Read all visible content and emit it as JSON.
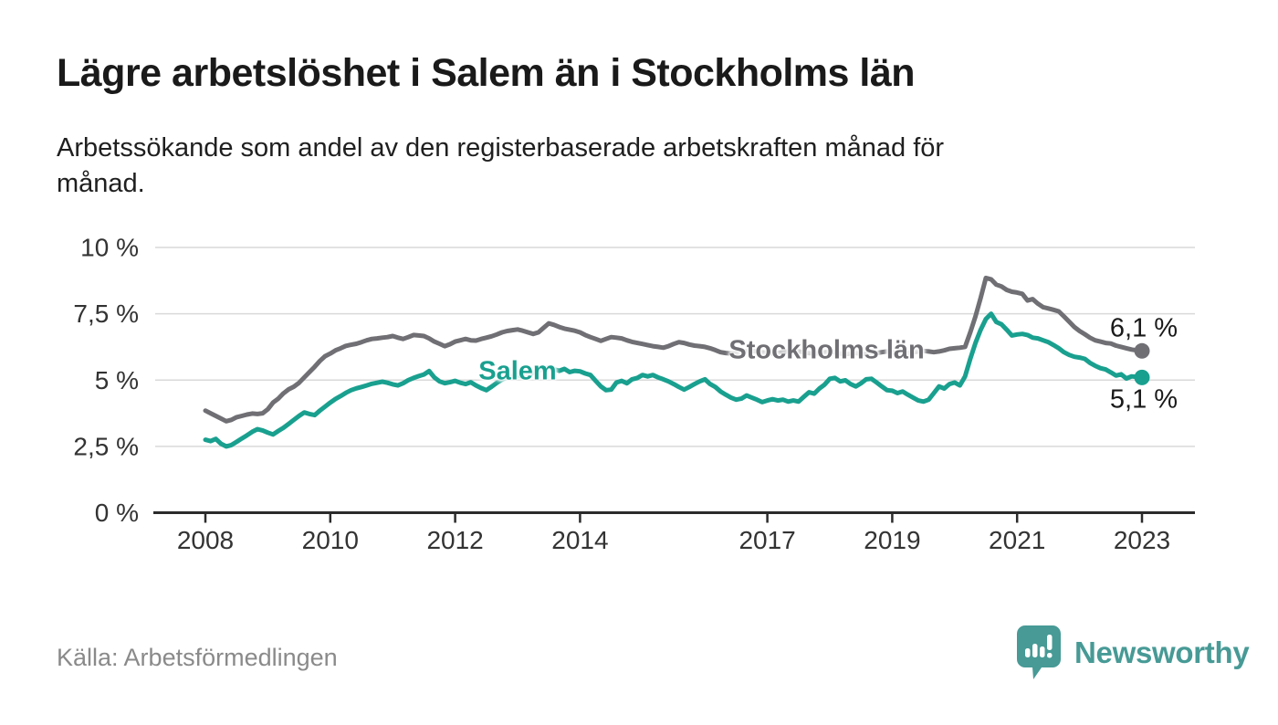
{
  "header": {
    "title": "Lägre arbetslöshet i Salem än i Stockholms län",
    "subtitle_lines": [
      "Arbetssökande som andel av den registerbaserade arbetskraften månad för",
      "månad."
    ]
  },
  "chart_data": {
    "type": "line",
    "title": "Lägre arbetslöshet i Salem än i Stockholms län",
    "ylabel": "",
    "xlabel": "",
    "unit": "%",
    "ylim": [
      0,
      10
    ],
    "grid": true,
    "x_start_year": 2008,
    "x_start_month": 1,
    "x_step_months": 1,
    "x_ticks": [
      {
        "label": "2008",
        "year": 2008
      },
      {
        "label": "2010",
        "year": 2010
      },
      {
        "label": "2012",
        "year": 2012
      },
      {
        "label": "2014",
        "year": 2014
      },
      {
        "label": "2017",
        "year": 2017
      },
      {
        "label": "2019",
        "year": 2019
      },
      {
        "label": "2021",
        "year": 2021
      },
      {
        "label": "2023",
        "year": 2023
      }
    ],
    "y_ticks": [
      {
        "label": "0 %",
        "value": 0
      },
      {
        "label": "2,5 %",
        "value": 2.5
      },
      {
        "label": "5 %",
        "value": 5
      },
      {
        "label": "7,5 %",
        "value": 7.5
      },
      {
        "label": "10 %",
        "value": 10
      }
    ],
    "series": [
      {
        "name": "Stockholms län",
        "color": "#6f6f74",
        "end_label": "6,1 %",
        "end_value": 6.1,
        "label_pos": {
          "year": 2017.95,
          "value": 6.12
        },
        "end_label_dy": -24,
        "values": [
          3.85,
          3.75,
          3.65,
          3.55,
          3.45,
          3.5,
          3.6,
          3.65,
          3.7,
          3.74,
          3.72,
          3.75,
          3.9,
          4.15,
          4.3,
          4.5,
          4.65,
          4.75,
          4.9,
          5.1,
          5.3,
          5.5,
          5.72,
          5.9,
          6.0,
          6.12,
          6.2,
          6.29,
          6.33,
          6.37,
          6.43,
          6.5,
          6.55,
          6.57,
          6.6,
          6.62,
          6.66,
          6.6,
          6.55,
          6.62,
          6.7,
          6.68,
          6.66,
          6.57,
          6.45,
          6.37,
          6.28,
          6.35,
          6.45,
          6.5,
          6.55,
          6.5,
          6.49,
          6.55,
          6.6,
          6.65,
          6.72,
          6.8,
          6.85,
          6.88,
          6.91,
          6.86,
          6.8,
          6.74,
          6.8,
          6.97,
          7.14,
          7.08,
          7.0,
          6.94,
          6.9,
          6.86,
          6.8,
          6.7,
          6.62,
          6.55,
          6.48,
          6.55,
          6.62,
          6.6,
          6.57,
          6.5,
          6.44,
          6.4,
          6.36,
          6.32,
          6.28,
          6.25,
          6.22,
          6.28,
          6.36,
          6.43,
          6.4,
          6.34,
          6.3,
          6.28,
          6.25,
          6.2,
          6.13,
          6.05,
          6.02,
          6.0,
          6.02,
          6.05,
          6.08,
          6.1,
          6.08,
          6.05,
          6.02,
          6.0,
          6.02,
          6.05,
          6.08,
          6.1,
          6.08,
          6.05,
          6.02,
          6.0,
          6.02,
          6.05,
          6.08,
          6.05,
          6.0,
          5.98,
          6.0,
          6.02,
          6.0,
          5.98,
          6.0,
          6.02,
          6.05,
          6.08,
          6.05,
          6.02,
          6.0,
          6.02,
          6.05,
          6.08,
          6.1,
          6.08,
          6.05,
          6.08,
          6.12,
          6.18,
          6.2,
          6.22,
          6.25,
          6.8,
          7.4,
          8.1,
          8.85,
          8.8,
          8.6,
          8.53,
          8.4,
          8.33,
          8.3,
          8.25,
          8.0,
          8.05,
          7.88,
          7.75,
          7.7,
          7.65,
          7.59,
          7.4,
          7.2,
          7.0,
          6.85,
          6.73,
          6.6,
          6.5,
          6.45,
          6.4,
          6.38,
          6.3,
          6.25,
          6.2,
          6.15,
          6.12,
          6.1
        ]
      },
      {
        "name": "Salem",
        "color": "#19a08f",
        "end_label": "5,1 %",
        "end_value": 5.1,
        "label_pos": {
          "year": 2013.0,
          "value": 5.32
        },
        "end_label_dy": 25,
        "values": [
          2.75,
          2.7,
          2.78,
          2.6,
          2.5,
          2.55,
          2.67,
          2.8,
          2.92,
          3.05,
          3.15,
          3.1,
          3.02,
          2.95,
          3.08,
          3.2,
          3.35,
          3.5,
          3.65,
          3.78,
          3.72,
          3.68,
          3.85,
          4.0,
          4.15,
          4.29,
          4.4,
          4.52,
          4.62,
          4.69,
          4.74,
          4.8,
          4.86,
          4.9,
          4.94,
          4.9,
          4.84,
          4.8,
          4.88,
          5.0,
          5.08,
          5.15,
          5.21,
          5.34,
          5.1,
          4.95,
          4.88,
          4.92,
          4.97,
          4.9,
          4.85,
          4.92,
          4.8,
          4.7,
          4.62,
          4.75,
          4.9,
          5.02,
          5.1,
          5.15,
          5.2,
          5.12,
          5.18,
          5.28,
          5.35,
          5.42,
          5.48,
          5.4,
          5.35,
          5.42,
          5.3,
          5.35,
          5.33,
          5.25,
          5.19,
          4.97,
          4.76,
          4.62,
          4.64,
          4.91,
          4.97,
          4.88,
          5.03,
          5.08,
          5.19,
          5.14,
          5.19,
          5.1,
          5.03,
          4.95,
          4.85,
          4.74,
          4.64,
          4.74,
          4.85,
          4.95,
          5.03,
          4.85,
          4.74,
          4.57,
          4.45,
          4.34,
          4.26,
          4.3,
          4.42,
          4.34,
          4.26,
          4.17,
          4.23,
          4.28,
          4.23,
          4.26,
          4.19,
          4.23,
          4.19,
          4.37,
          4.54,
          4.49,
          4.68,
          4.83,
          5.05,
          5.08,
          4.95,
          4.99,
          4.85,
          4.76,
          4.88,
          5.03,
          5.05,
          4.91,
          4.76,
          4.62,
          4.6,
          4.51,
          4.57,
          4.45,
          4.34,
          4.23,
          4.19,
          4.26,
          4.51,
          4.76,
          4.68,
          4.85,
          4.91,
          4.8,
          5.14,
          5.8,
          6.4,
          6.9,
          7.3,
          7.5,
          7.19,
          7.1,
          6.9,
          6.68,
          6.72,
          6.74,
          6.7,
          6.6,
          6.57,
          6.5,
          6.43,
          6.32,
          6.2,
          6.05,
          5.95,
          5.88,
          5.85,
          5.8,
          5.65,
          5.54,
          5.45,
          5.4,
          5.29,
          5.17,
          5.22,
          5.06,
          5.14,
          5.12,
          5.1
        ]
      }
    ]
  },
  "footer": {
    "source": "Källa: Arbetsförmedlingen",
    "logo_text": "Newsworthy",
    "logo_color": "#479a96"
  }
}
